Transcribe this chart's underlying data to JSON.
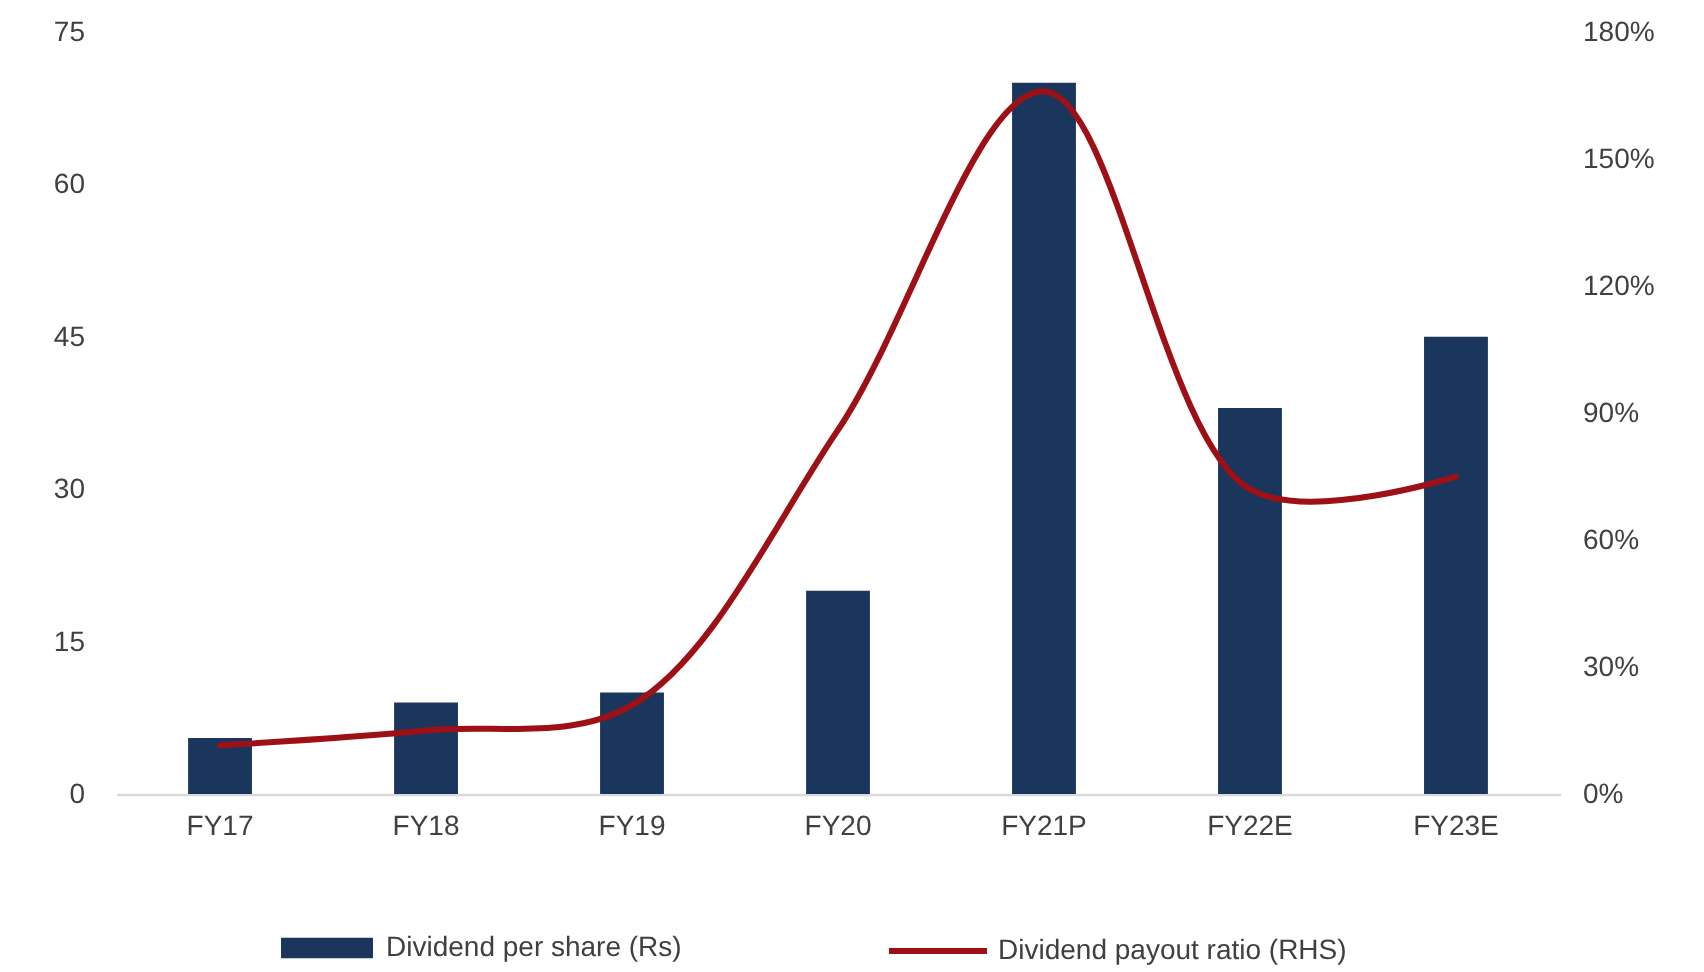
{
  "chart_data": {
    "type": "bar",
    "categories": [
      "FY17",
      "FY18",
      "FY19",
      "FY20",
      "FY21P",
      "FY22E",
      "FY23E"
    ],
    "series": [
      {
        "name": "Dividend per share (Rs)",
        "color": "#1b365d",
        "values": [
          5.5,
          9,
          10,
          20,
          70,
          38,
          45
        ]
      },
      {
        "name": "Dividend payout ratio (RHS)",
        "type": "line",
        "axis": "y2",
        "color": "#9c1016",
        "values": [
          11.5,
          15,
          21,
          86,
          166,
          72,
          75
        ]
      }
    ],
    "ylim": [
      0,
      75
    ],
    "yticks": [
      0,
      15,
      30,
      45,
      60,
      75
    ],
    "y2lim": [
      0,
      180
    ],
    "y2ticks": [
      {
        "value": 0,
        "label": "0%"
      },
      {
        "value": 30,
        "label": "30%"
      },
      {
        "value": 60,
        "label": "60%"
      },
      {
        "value": 90,
        "label": "90%"
      },
      {
        "value": 120,
        "label": "120%"
      },
      {
        "value": 150,
        "label": "150%"
      },
      {
        "value": 180,
        "label": "180%"
      }
    ],
    "grid": false,
    "legend": "bottom",
    "line_style": "solid",
    "marker": "none"
  }
}
